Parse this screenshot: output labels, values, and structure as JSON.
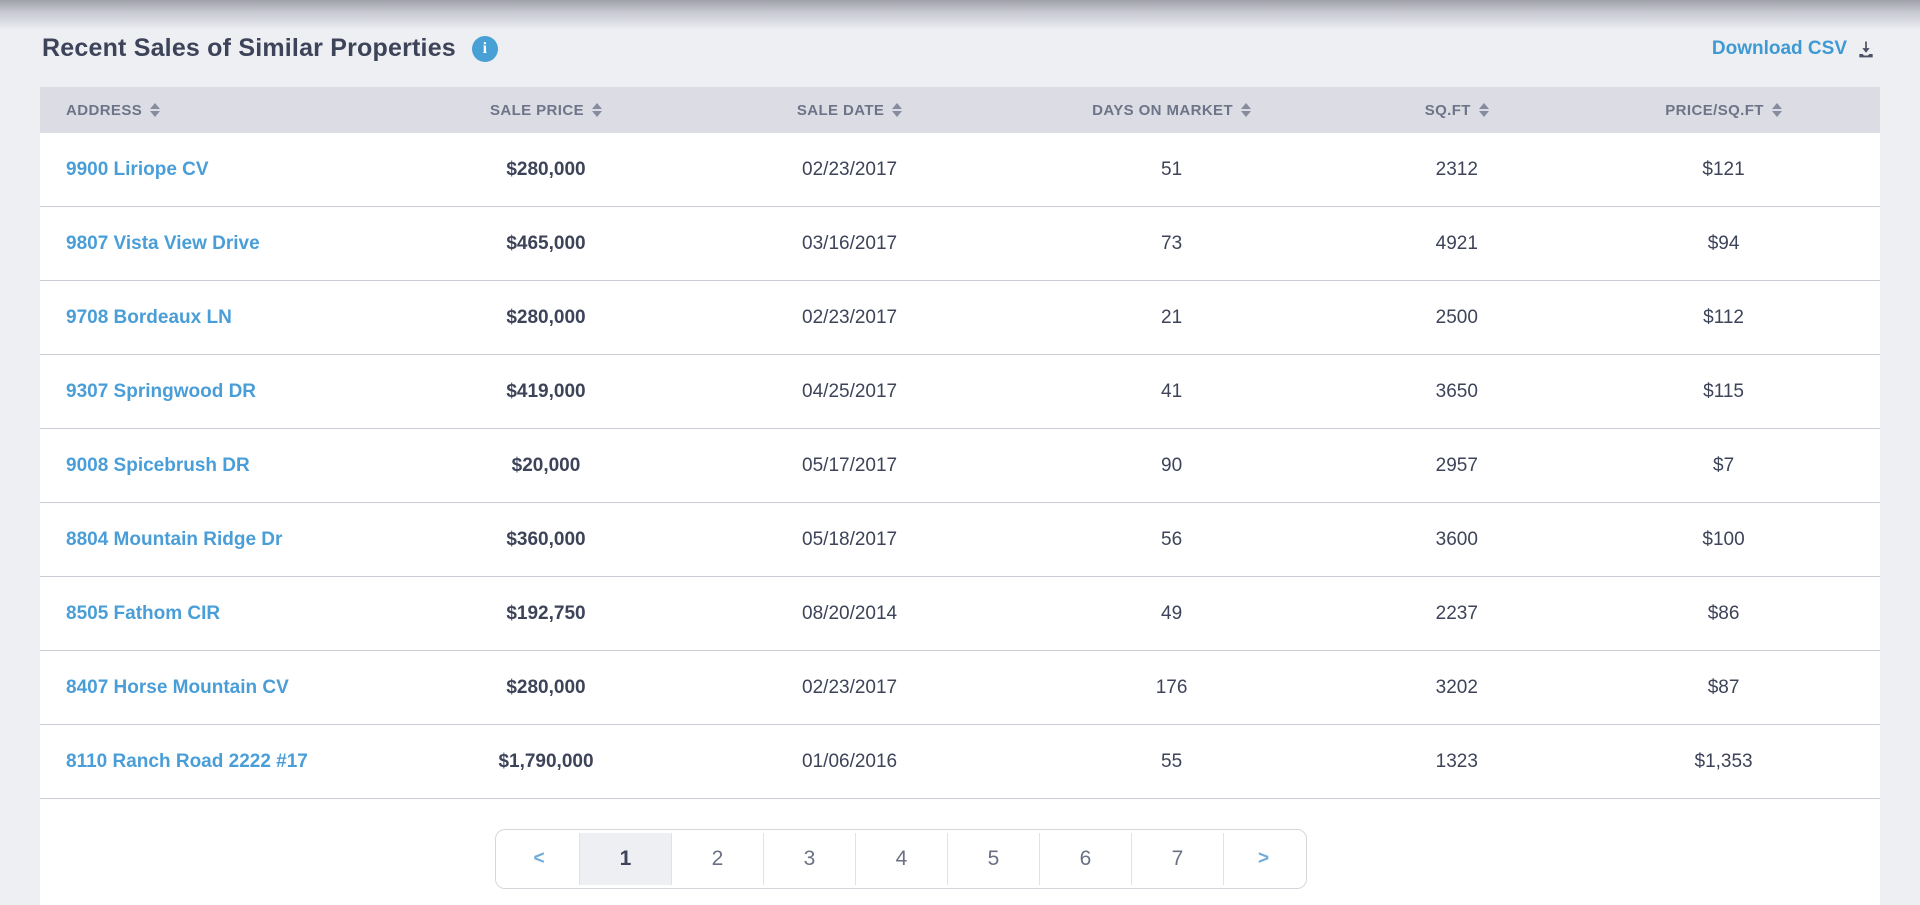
{
  "header": {
    "title": "Recent Sales of Similar Properties",
    "download_csv": "Download CSV"
  },
  "table": {
    "columns": [
      "ADDRESS",
      "SALE PRICE",
      "SALE DATE",
      "DAYS ON MARKET",
      "SQ.FT",
      "PRICE/SQ.FT"
    ],
    "rows": [
      {
        "address": "9900 Liriope CV",
        "sale_price": "$280,000",
        "sale_date": "02/23/2017",
        "days_on_market": "51",
        "sqft": "2312",
        "price_per_sqft": "$121"
      },
      {
        "address": "9807 Vista View Drive",
        "sale_price": "$465,000",
        "sale_date": "03/16/2017",
        "days_on_market": "73",
        "sqft": "4921",
        "price_per_sqft": "$94"
      },
      {
        "address": "9708 Bordeaux LN",
        "sale_price": "$280,000",
        "sale_date": "02/23/2017",
        "days_on_market": "21",
        "sqft": "2500",
        "price_per_sqft": "$112"
      },
      {
        "address": "9307 Springwood DR",
        "sale_price": "$419,000",
        "sale_date": "04/25/2017",
        "days_on_market": "41",
        "sqft": "3650",
        "price_per_sqft": "$115"
      },
      {
        "address": "9008 Spicebrush DR",
        "sale_price": "$20,000",
        "sale_date": "05/17/2017",
        "days_on_market": "90",
        "sqft": "2957",
        "price_per_sqft": "$7"
      },
      {
        "address": "8804 Mountain Ridge Dr",
        "sale_price": "$360,000",
        "sale_date": "05/18/2017",
        "days_on_market": "56",
        "sqft": "3600",
        "price_per_sqft": "$100"
      },
      {
        "address": "8505 Fathom CIR",
        "sale_price": "$192,750",
        "sale_date": "08/20/2014",
        "days_on_market": "49",
        "sqft": "2237",
        "price_per_sqft": "$86"
      },
      {
        "address": "8407 Horse Mountain CV",
        "sale_price": "$280,000",
        "sale_date": "02/23/2017",
        "days_on_market": "176",
        "sqft": "3202",
        "price_per_sqft": "$87"
      },
      {
        "address": "8110 Ranch Road 2222 #17",
        "sale_price": "$1,790,000",
        "sale_date": "01/06/2016",
        "days_on_market": "55",
        "sqft": "1323",
        "price_per_sqft": "$1,353"
      }
    ]
  },
  "pagination": {
    "prev": "<",
    "pages": [
      "1",
      "2",
      "3",
      "4",
      "5",
      "6",
      "7"
    ],
    "active": "1",
    "next": ">"
  },
  "colors": {
    "link_blue": "#4a9ed8",
    "download_blue": "#3f9ad3",
    "info_icon_blue": "#49a0d5",
    "header_bg": "#dcdde4",
    "text_dark": "#3d4358",
    "text_muted": "#6e7488",
    "page_bg": "#edeff3"
  }
}
